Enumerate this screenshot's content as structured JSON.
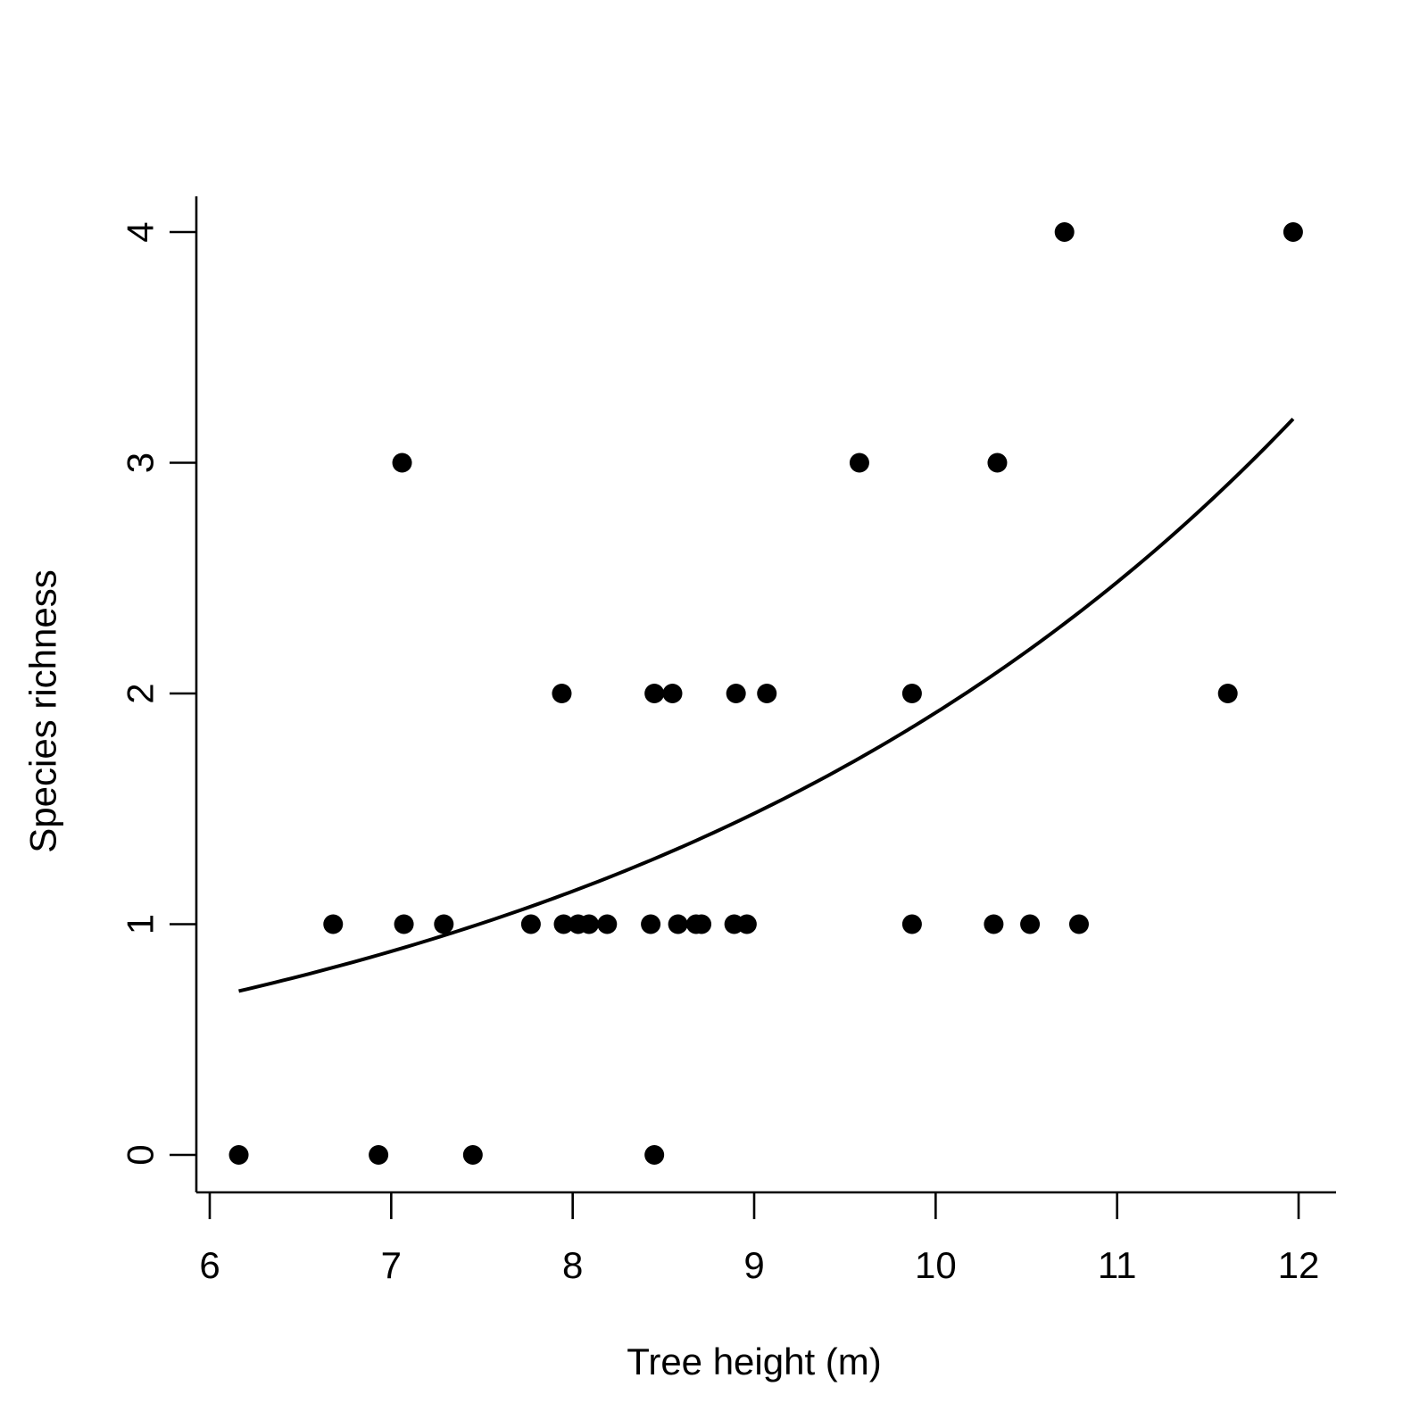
{
  "chart_data": {
    "type": "scatter",
    "title": "",
    "xlabel": "Tree height (m)",
    "ylabel": "Species richness",
    "xlim": [
      6,
      12
    ],
    "ylim": [
      0,
      4
    ],
    "x_ticks": [
      6,
      7,
      8,
      9,
      10,
      11,
      12
    ],
    "y_ticks": [
      0,
      1,
      2,
      3,
      4
    ],
    "grid": false,
    "legend": "none",
    "point_color": "#000000",
    "line_color": "#000000",
    "points": [
      {
        "x": 6.16,
        "y": 0
      },
      {
        "x": 6.93,
        "y": 0
      },
      {
        "x": 7.45,
        "y": 0
      },
      {
        "x": 8.45,
        "y": 0
      },
      {
        "x": 6.68,
        "y": 1
      },
      {
        "x": 7.07,
        "y": 1
      },
      {
        "x": 7.29,
        "y": 1
      },
      {
        "x": 7.77,
        "y": 1
      },
      {
        "x": 7.95,
        "y": 1
      },
      {
        "x": 8.03,
        "y": 1
      },
      {
        "x": 8.09,
        "y": 1
      },
      {
        "x": 8.19,
        "y": 1
      },
      {
        "x": 8.43,
        "y": 1
      },
      {
        "x": 8.58,
        "y": 1
      },
      {
        "x": 8.68,
        "y": 1
      },
      {
        "x": 8.71,
        "y": 1
      },
      {
        "x": 8.89,
        "y": 1
      },
      {
        "x": 8.96,
        "y": 1
      },
      {
        "x": 9.87,
        "y": 1
      },
      {
        "x": 10.32,
        "y": 1
      },
      {
        "x": 10.52,
        "y": 1
      },
      {
        "x": 10.79,
        "y": 1
      },
      {
        "x": 7.94,
        "y": 2
      },
      {
        "x": 8.45,
        "y": 2
      },
      {
        "x": 8.55,
        "y": 2
      },
      {
        "x": 8.9,
        "y": 2
      },
      {
        "x": 9.07,
        "y": 2
      },
      {
        "x": 9.87,
        "y": 2
      },
      {
        "x": 11.61,
        "y": 2
      },
      {
        "x": 7.06,
        "y": 3
      },
      {
        "x": 9.58,
        "y": 3
      },
      {
        "x": 10.34,
        "y": 3
      },
      {
        "x": 10.71,
        "y": 4
      },
      {
        "x": 11.97,
        "y": 4
      }
    ],
    "fit_line": {
      "type": "exponential",
      "x_range": [
        6.16,
        11.97
      ],
      "y_at_start": 0.71,
      "y_at_end": 3.19
    }
  }
}
